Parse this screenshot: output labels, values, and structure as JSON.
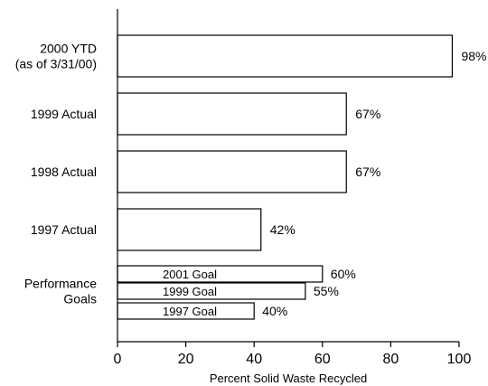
{
  "chart_data": {
    "type": "bar",
    "orientation": "horizontal",
    "xlabel": "Percent Solid Waste Recycled",
    "xlim": [
      0,
      100
    ],
    "xticks": [
      0,
      20,
      40,
      60,
      80,
      100
    ],
    "grid": false,
    "bars": [
      {
        "category_lines": [
          "2000 YTD",
          "(as of 3/31/00)"
        ],
        "value": 98,
        "value_label": "98%"
      },
      {
        "category_lines": [
          "1999 Actual"
        ],
        "value": 67,
        "value_label": "67%"
      },
      {
        "category_lines": [
          "1998 Actual"
        ],
        "value": 67,
        "value_label": "67%"
      },
      {
        "category_lines": [
          "1997 Actual"
        ],
        "value": 42,
        "value_label": "42%"
      }
    ],
    "goals_group": {
      "category_lines": [
        "Performance",
        "Goals"
      ],
      "items": [
        {
          "name": "2001 Goal",
          "value": 60,
          "value_label": "60%"
        },
        {
          "name": "1999 Goal",
          "value": 55,
          "value_label": "55%"
        },
        {
          "name": "1997 Goal",
          "value": 40,
          "value_label": "40%"
        }
      ]
    }
  }
}
